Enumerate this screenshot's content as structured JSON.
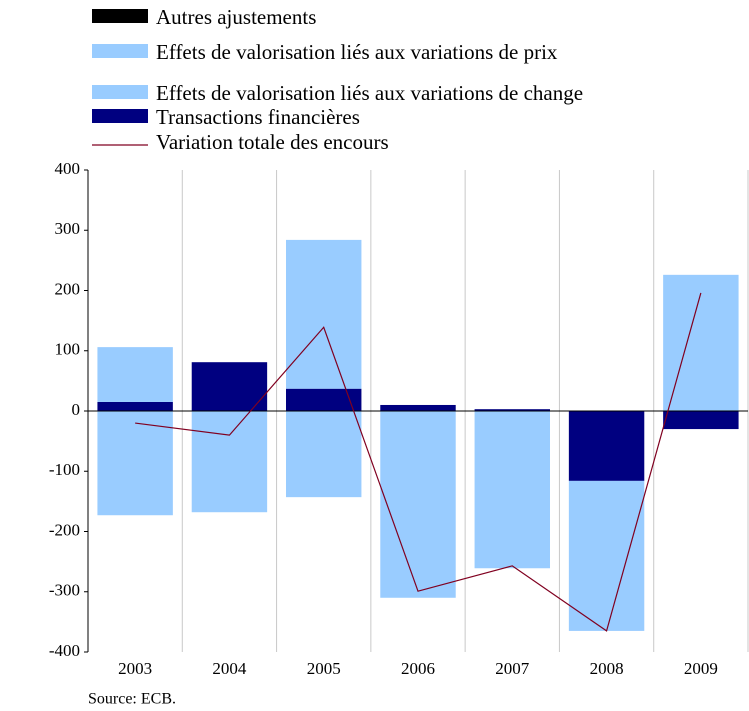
{
  "chart_data": {
    "type": "bar",
    "source": "Source: ECB.",
    "categories": [
      "2003",
      "2004",
      "2005",
      "2006",
      "2007",
      "2008",
      "2009"
    ],
    "series": [
      {
        "name": "Autres ajustements",
        "color": "#000000",
        "values": [
          0,
          0,
          0,
          0,
          0,
          0,
          0
        ]
      },
      {
        "name": "Effets de valorisation liés aux variations de prix",
        "color": "#99ccff",
        "values": [
          91,
          0,
          247,
          0,
          0,
          0,
          0
        ]
      },
      {
        "name": "Effets de valorisation liés aux variations de change",
        "color": "#99ccff",
        "values": [
          -173,
          -168,
          -143,
          -310,
          -261,
          -249,
          226
        ]
      },
      {
        "name": "Transactions financières",
        "color": "#000080",
        "values": [
          15,
          81,
          37,
          10,
          3,
          -116,
          -30
        ]
      },
      {
        "name": "Variation totale des encours",
        "color": "#800020",
        "type": "line",
        "values": [
          -20,
          -40,
          139,
          -299,
          -257,
          -365,
          196
        ]
      }
    ],
    "ylim": [
      -400,
      400
    ],
    "yticks": [
      -400,
      -300,
      -200,
      -100,
      0,
      100,
      200,
      300,
      400
    ],
    "grid": true
  }
}
